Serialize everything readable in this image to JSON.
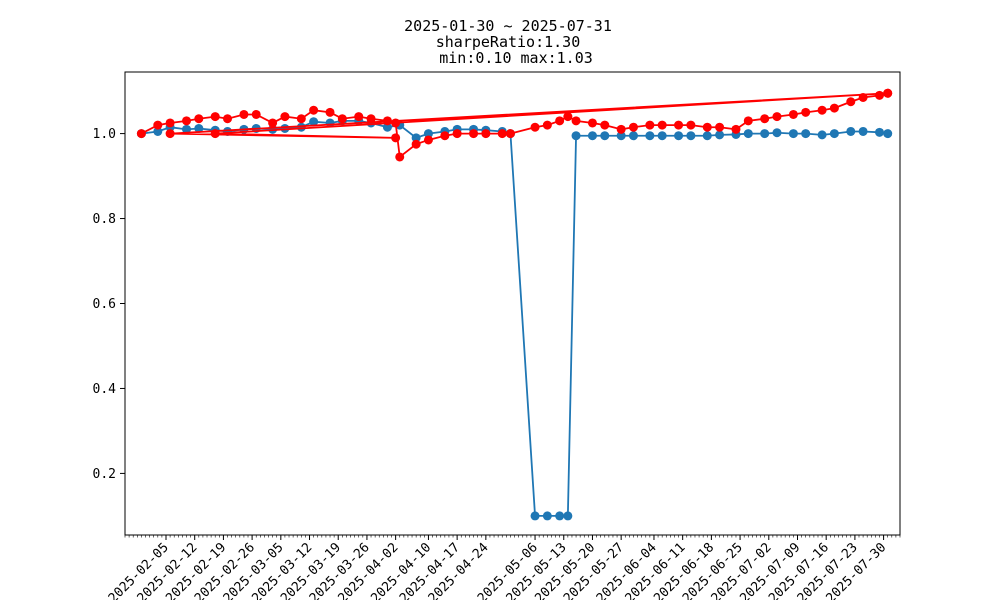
{
  "chart_data": {
    "type": "line",
    "title_lines": [
      "2025-01-30 ~ 2025-07-31",
      "sharpeRatio:1.30",
      "min:0.10 max:1.03"
    ],
    "xlabel": "",
    "ylabel": "",
    "x_axis_type": "date",
    "xlim": [
      "2025-01-26",
      "2025-08-03"
    ],
    "ylim": [
      0.055,
      1.145
    ],
    "x_tick_labels": [
      "2025-02-05",
      "2025-02-12",
      "2025-02-19",
      "2025-02-26",
      "2025-03-05",
      "2025-03-12",
      "2025-03-19",
      "2025-03-26",
      "2025-04-02",
      "2025-04-10",
      "2025-04-17",
      "2025-04-24",
      "2025-05-06",
      "2025-05-13",
      "2025-05-20",
      "2025-05-27",
      "2025-06-04",
      "2025-06-11",
      "2025-06-18",
      "2025-06-25",
      "2025-07-02",
      "2025-07-09",
      "2025-07-16",
      "2025-07-23",
      "2025-07-30"
    ],
    "y_ticks": [
      0.2,
      0.4,
      0.6,
      0.8,
      1.0
    ],
    "y_tick_labels": [
      "0.2",
      "0.4",
      "0.6",
      "0.8",
      "1.0"
    ],
    "grid": false,
    "series": [
      {
        "color": "#1f77b4",
        "marker": "circle",
        "x": [
          "2025-01-30",
          "2025-02-03",
          "2025-02-06",
          "2025-02-10",
          "2025-02-13",
          "2025-02-17",
          "2025-02-20",
          "2025-02-24",
          "2025-02-27",
          "2025-03-03",
          "2025-03-06",
          "2025-03-10",
          "2025-03-13",
          "2025-03-17",
          "2025-03-20",
          "2025-03-24",
          "2025-03-27",
          "2025-03-31",
          "2025-04-03",
          "2025-04-07",
          "2025-04-10",
          "2025-04-14",
          "2025-04-17",
          "2025-04-21",
          "2025-04-24",
          "2025-04-28",
          "2025-04-30",
          "2025-05-06",
          "2025-05-09",
          "2025-05-12",
          "2025-05-14",
          "2025-05-16",
          "2025-05-20",
          "2025-05-23",
          "2025-05-27",
          "2025-05-30",
          "2025-06-03",
          "2025-06-06",
          "2025-06-10",
          "2025-06-13",
          "2025-06-17",
          "2025-06-20",
          "2025-06-24",
          "2025-06-27",
          "2025-07-01",
          "2025-07-04",
          "2025-07-08",
          "2025-07-11",
          "2025-07-15",
          "2025-07-18",
          "2025-07-22",
          "2025-07-25",
          "2025-07-29",
          "2025-07-31"
        ],
        "y": [
          1.0,
          1.005,
          1.015,
          1.01,
          1.012,
          1.008,
          1.005,
          1.01,
          1.012,
          1.01,
          1.012,
          1.015,
          1.028,
          1.025,
          1.03,
          1.03,
          1.025,
          1.015,
          1.02,
          0.99,
          1.0,
          1.005,
          1.01,
          1.01,
          1.008,
          1.005,
          1.0,
          0.1,
          0.1,
          0.1,
          0.1,
          0.995,
          0.995,
          0.995,
          0.995,
          0.995,
          0.995,
          0.995,
          0.995,
          0.995,
          0.995,
          0.997,
          0.998,
          1.0,
          1.0,
          1.002,
          1.0,
          1.0,
          0.997,
          1.0,
          1.005,
          1.005,
          1.003,
          1.0
        ]
      },
      {
        "color": "#ff0000",
        "marker": "circle",
        "x": [
          "2025-01-30",
          "2025-02-03",
          "2025-02-06",
          "2025-02-10",
          "2025-02-13",
          "2025-02-17",
          "2025-02-20",
          "2025-02-24",
          "2025-02-27",
          "2025-03-03",
          "2025-03-06",
          "2025-03-10",
          "2025-03-13",
          "2025-03-17",
          "2025-03-20",
          "2025-03-24",
          "2025-03-27",
          "2025-03-31",
          "2025-04-02",
          "2025-04-03",
          "2025-04-07",
          "2025-04-10",
          "2025-04-14",
          "2025-04-17",
          "2025-04-21",
          "2025-04-24",
          "2025-04-28",
          "2025-04-30",
          "2025-05-06",
          "2025-05-09",
          "2025-05-12",
          "2025-05-14",
          "2025-05-16",
          "2025-05-20",
          "2025-05-23",
          "2025-05-27",
          "2025-05-30",
          "2025-06-03",
          "2025-06-06",
          "2025-06-10",
          "2025-06-13",
          "2025-06-17",
          "2025-06-20",
          "2025-06-24",
          "2025-06-27",
          "2025-07-01",
          "2025-07-04",
          "2025-07-08",
          "2025-07-11",
          "2025-07-15",
          "2025-07-18",
          "2025-07-22",
          "2025-07-25",
          "2025-07-29",
          "2025-07-31",
          "2025-02-17",
          "2025-04-02",
          "2025-02-06",
          "2025-07-31"
        ],
        "y": [
          1.0,
          1.02,
          1.025,
          1.03,
          1.035,
          1.04,
          1.035,
          1.045,
          1.045,
          1.025,
          1.04,
          1.035,
          1.055,
          1.05,
          1.035,
          1.04,
          1.035,
          1.03,
          1.025,
          0.945,
          0.975,
          0.985,
          0.995,
          1.0,
          1.0,
          1.0,
          1.0,
          1.0,
          1.015,
          1.02,
          1.03,
          1.04,
          1.03,
          1.025,
          1.02,
          1.01,
          1.015,
          1.02,
          1.02,
          1.02,
          1.02,
          1.015,
          1.015,
          1.01,
          1.03,
          1.035,
          1.04,
          1.045,
          1.05,
          1.055,
          1.06,
          1.075,
          1.085,
          1.09,
          1.095,
          1.0,
          0.99,
          1.0,
          1.095
        ]
      }
    ]
  }
}
